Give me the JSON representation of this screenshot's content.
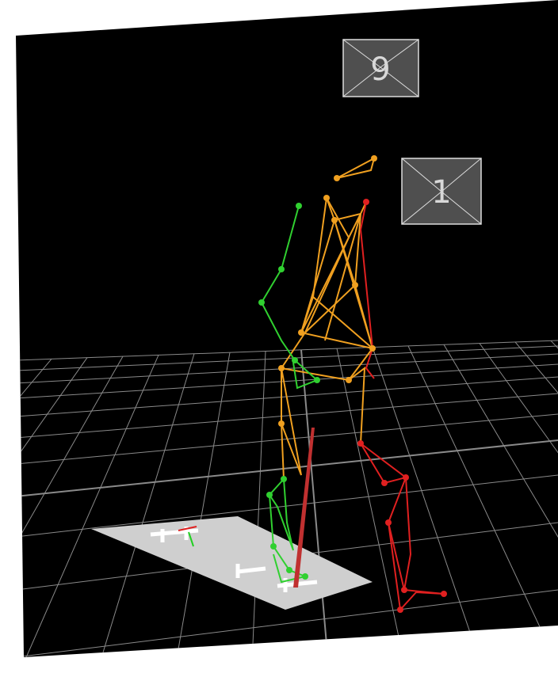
{
  "cameras": [
    {
      "label": "9"
    },
    {
      "label": "1"
    }
  ]
}
